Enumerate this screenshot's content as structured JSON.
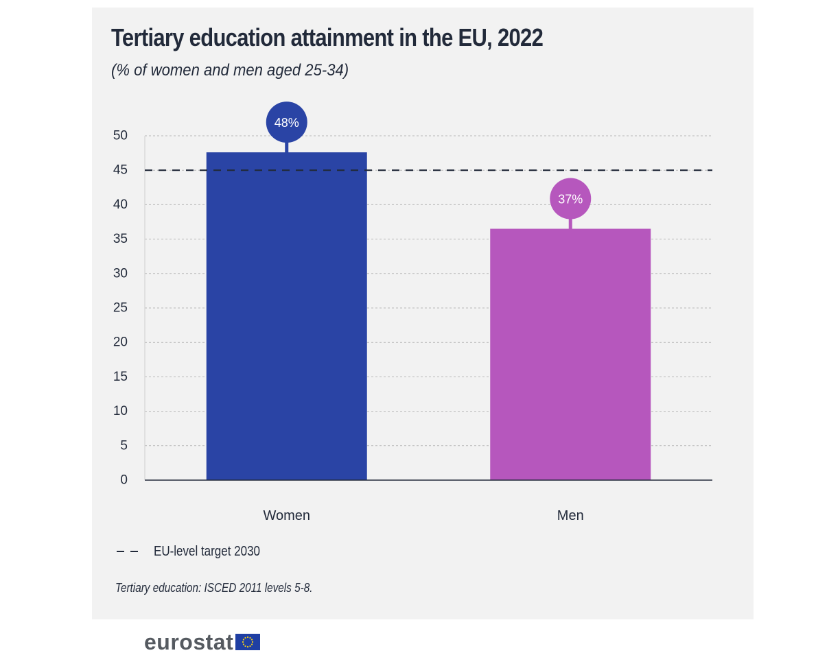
{
  "title": "Tertiary education attainment in the EU, 2022",
  "subtitle": "(% of women and men aged 25-34)",
  "chart_data": {
    "type": "bar",
    "categories": [
      "Women",
      "Men"
    ],
    "values": [
      47.6,
      36.5
    ],
    "data_labels": [
      "48%",
      "37%"
    ],
    "colors": [
      "#2a44a5",
      "#b657bd"
    ],
    "ylim": [
      0,
      50
    ],
    "yticks": [
      0,
      5,
      10,
      15,
      20,
      25,
      30,
      35,
      40,
      45,
      50
    ],
    "ytick_labels": [
      "0",
      "5",
      "10",
      "15",
      "20",
      "25",
      "30",
      "35",
      "40",
      "45",
      "50"
    ],
    "grid": true,
    "reference_line": {
      "value": 45,
      "label": "EU-level target 2030",
      "style": "dashed",
      "color": "#222a3a"
    },
    "xlabel": "",
    "ylabel": ""
  },
  "legend": {
    "label": "EU-level target 2030"
  },
  "footnote": "Tertiary education: ISCED 2011 levels 5-8.",
  "logo": {
    "text": "eurostat",
    "flag_color": "#1f3fa3",
    "star_color": "#f7d117"
  }
}
